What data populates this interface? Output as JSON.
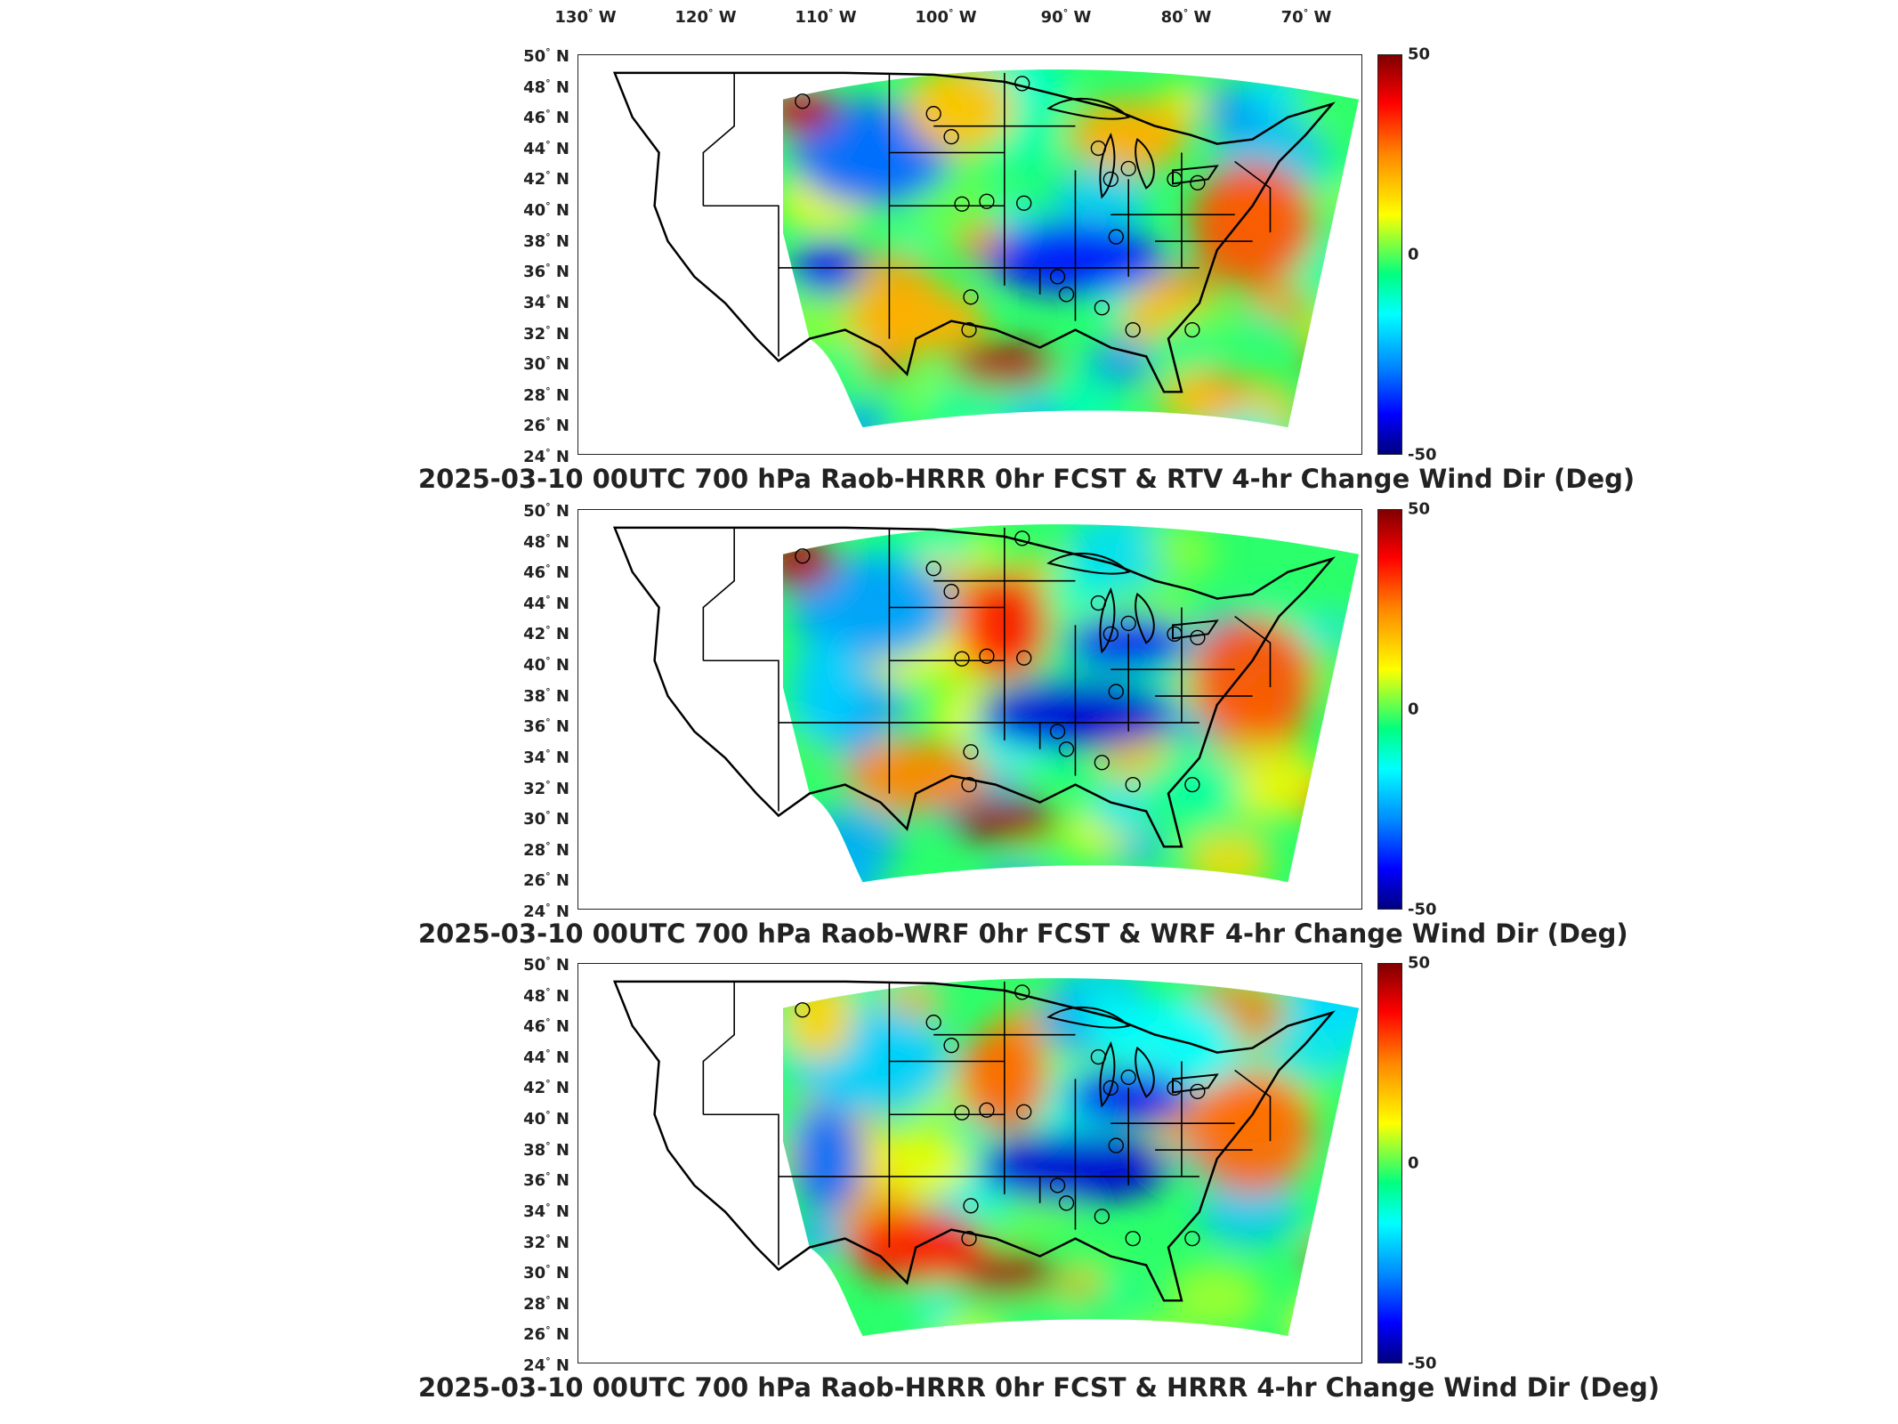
{
  "longitude_labels": [
    {
      "text": "130",
      "deg": "°",
      "hemi": "W"
    },
    {
      "text": "120",
      "deg": "°",
      "hemi": "W"
    },
    {
      "text": "110",
      "deg": "°",
      "hemi": "W"
    },
    {
      "text": "100",
      "deg": "°",
      "hemi": "W"
    },
    {
      "text": "90",
      "deg": "°",
      "hemi": "W"
    },
    {
      "text": "80",
      "deg": "°",
      "hemi": "W"
    },
    {
      "text": "70",
      "deg": "°",
      "hemi": "W"
    }
  ],
  "latitude_labels": [
    "50",
    "48",
    "46",
    "44",
    "42",
    "40",
    "38",
    "36",
    "34",
    "32",
    "30",
    "28",
    "26",
    "24"
  ],
  "lat_hemi": "N",
  "colorbar": {
    "max": "50",
    "mid": "0",
    "min": "-50"
  },
  "panels": [
    {
      "title": "2025-03-10 00UTC 700 hPa Raob-HRRR 0hr FCST & RTV 4-hr Change Wind Dir (Deg)"
    },
    {
      "title": "2025-03-10 00UTC 700 hPa Raob-WRF 0hr FCST & WRF 4-hr Change Wind Dir (Deg)"
    },
    {
      "title": "2025-03-10 00UTC 700 hPa Raob-HRRR 0hr FCST & HRRR 4-hr Change Wind Dir (Deg)"
    }
  ],
  "colors": {
    "positive": "#b00000",
    "neutral": "#7fff80",
    "negative": "#000090"
  }
}
